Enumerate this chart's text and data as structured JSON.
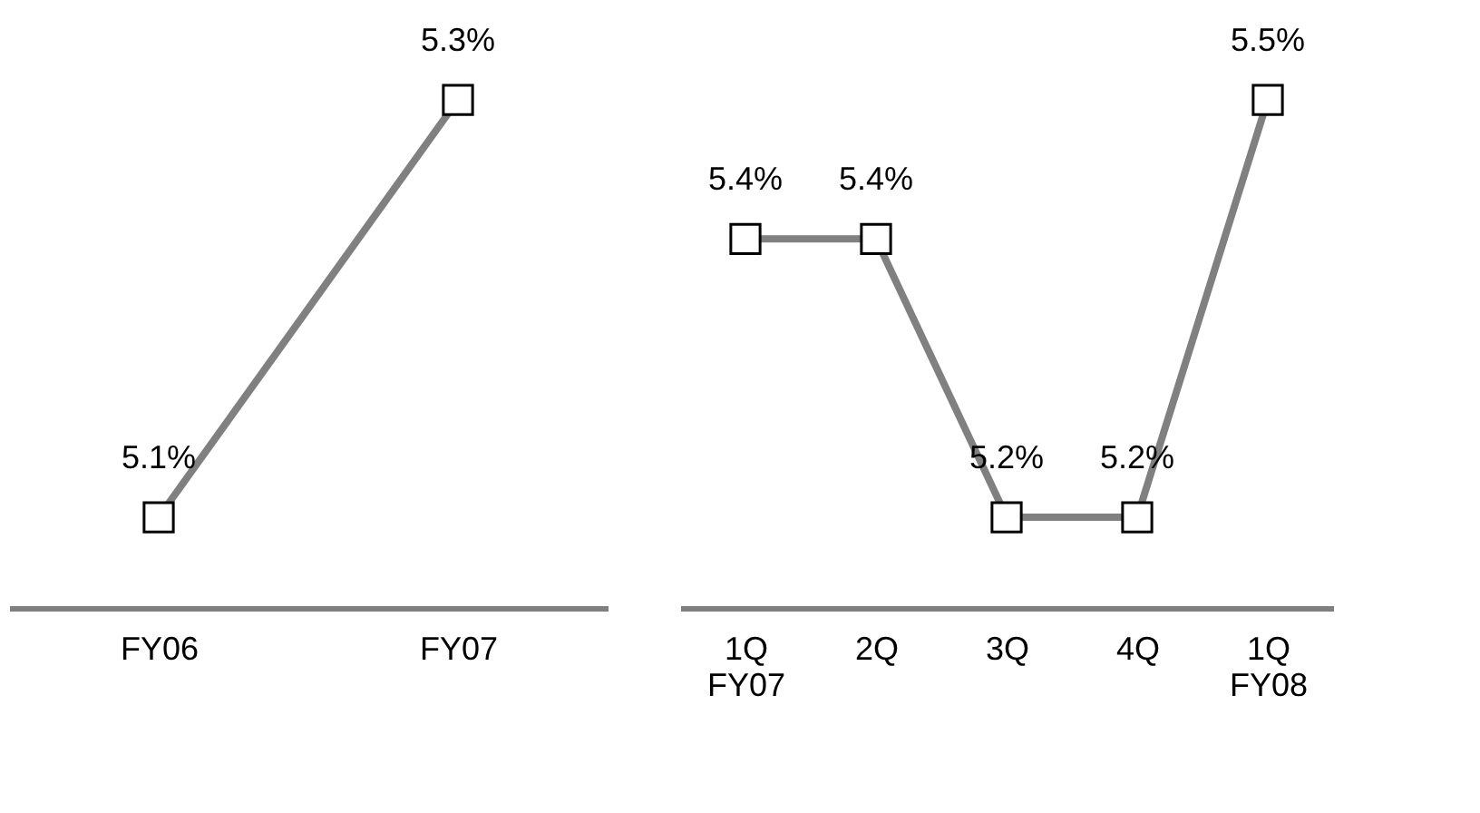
{
  "chart_data": [
    {
      "type": "line",
      "categories": [
        "FY06",
        "FY07"
      ],
      "series": [
        {
          "color": "#808080",
          "values": [
            5.1,
            5.3
          ],
          "value_labels": [
            "5.1%",
            "5.3%"
          ]
        }
      ],
      "marker": "square",
      "line_style": "solid",
      "grid": false,
      "tick_labels": "x"
    },
    {
      "type": "line",
      "categories": [
        "1Q\nFY07",
        "2Q",
        "3Q",
        "4Q",
        "1Q\nFY08"
      ],
      "series": [
        {
          "color": "#808080",
          "values": [
            5.4,
            5.4,
            5.2,
            5.2,
            5.5
          ],
          "value_labels": [
            "5.4%",
            "5.4%",
            "5.2%",
            "5.2%",
            "5.5%"
          ]
        }
      ],
      "marker": "square",
      "line_style": "solid",
      "grid": false,
      "tick_labels": "x"
    }
  ]
}
